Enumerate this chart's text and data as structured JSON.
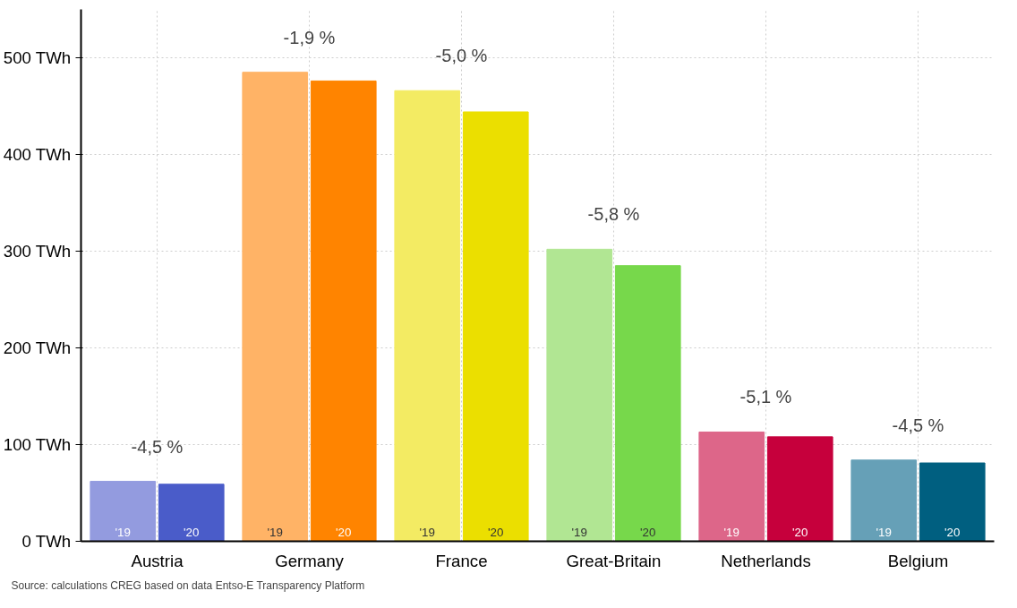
{
  "chart_data": {
    "type": "bar",
    "categories": [
      "Austria",
      "Germany",
      "France",
      "Great-Britain",
      "Netherlands",
      "Belgium"
    ],
    "series": [
      {
        "name": "'19",
        "colors": [
          "#939bdf",
          "#ffb366",
          "#f3eb63",
          "#b1e693",
          "#dd6689",
          "#66a0b7"
        ],
        "values": [
          62,
          485,
          466,
          302,
          113,
          84
        ]
      },
      {
        "name": "'20",
        "colors": [
          "#4a5cc9",
          "#ff8400",
          "#ebdf00",
          "#77d84b",
          "#c6003c",
          "#005f80"
        ],
        "values": [
          59,
          476,
          444,
          285,
          108,
          81
        ]
      }
    ],
    "ylim": [
      0,
      550
    ],
    "yticks": [
      {
        "value": 0,
        "label": "0 TWh"
      },
      {
        "value": 100,
        "label": "100 TWh"
      },
      {
        "value": 200,
        "label": "200 TWh"
      },
      {
        "value": 300,
        "label": "300 TWh"
      },
      {
        "value": 400,
        "label": "400 TWh"
      },
      {
        "value": 500,
        "label": "500 TWh"
      }
    ],
    "grid": true,
    "annotations": [
      {
        "text": "-4,5 %",
        "x": "Austria",
        "y": 62
      },
      {
        "text": "-1,9 %",
        "x": "Germany",
        "y": 485
      },
      {
        "text": "-5,0 %",
        "x": "France",
        "y": 466
      },
      {
        "text": "-5,8 %",
        "x": "Great-Britain",
        "y": 302
      },
      {
        "text": "-5,1 %",
        "x": "Netherlands",
        "y": 113
      },
      {
        "text": "-4,5 %",
        "x": "Belgium",
        "y": 84
      },
      "Source: calculations CREG based on data Entso-E Transparency Platform"
    ]
  }
}
